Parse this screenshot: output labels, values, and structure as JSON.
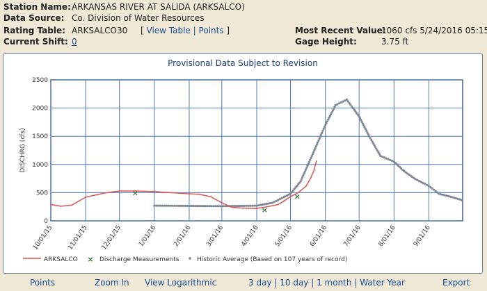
{
  "header": {
    "station_name_label": "Station Name:",
    "station_name": "ARKANSAS RIVER AT SALIDA (ARKSALCO)",
    "data_source_label": "Data Source:",
    "data_source": "Co. Division of Water Resources",
    "rating_table_label": "Rating Table:",
    "rating_table": "ARKSALCO30",
    "rating_links_open": "[",
    "view_table": "View Table",
    "points": "Points",
    "rating_links_close": "]",
    "link_sep": "|",
    "current_shift_label": "Current Shift:",
    "current_shift": "0",
    "most_recent_label": "Most Recent Value:",
    "most_recent": "1060 cfs 5/24/2016 05:15",
    "gage_height_label": "Gage Height:",
    "gage_height": "3.75 ft"
  },
  "colors": {
    "series_red": "#d9534f",
    "historic_gray": "#7c8594",
    "grid_blue": "#4f78b3",
    "measure_green": "#2e7d32"
  },
  "chart_data": {
    "type": "line",
    "title": "Provisional Data Subject to Revision",
    "ylabel": "DISCHRG (cfs)",
    "ylim": [
      0,
      2500
    ],
    "yticks": [
      "0",
      "500",
      "1000",
      "1500",
      "2000",
      "2500"
    ],
    "xticks": [
      "10/01/15",
      "11/01/15",
      "12/01/15",
      "1/01/16",
      "2/01/16",
      "3/01/16",
      "4/01/16",
      "5/01/16",
      "6/01/16",
      "7/01/16",
      "8/01/16",
      "9/01/16"
    ],
    "grid": true,
    "legend_position": "bottom",
    "series": [
      {
        "name": "ARKSALCO",
        "style": "line",
        "x": [
          "10/01/15",
          "10/10/15",
          "10/20/15",
          "10/25/15",
          "11/01/15",
          "11/10/15",
          "11/20/15",
          "12/01/15",
          "12/15/15",
          "1/01/16",
          "1/15/16",
          "2/01/16",
          "2/10/16",
          "2/20/16",
          "3/01/16",
          "3/10/16",
          "3/20/16",
          "4/01/16",
          "4/10/16",
          "4/20/16",
          "4/25/16",
          "5/01/16",
          "5/08/16",
          "5/15/16",
          "5/19/16",
          "5/22/16",
          "5/24/16"
        ],
        "values": [
          290,
          260,
          280,
          340,
          420,
          460,
          500,
          530,
          530,
          520,
          500,
          480,
          470,
          430,
          320,
          240,
          225,
          220,
          250,
          290,
          350,
          430,
          500,
          620,
          760,
          900,
          1060
        ]
      },
      {
        "name": "Discharge Measurements",
        "style": "marker",
        "x": [
          "12/15/15",
          "4/08/16",
          "5/07/16"
        ],
        "values": [
          500,
          200,
          440
        ]
      },
      {
        "name": "Historic Average (Based on 107 years of record)",
        "style": "dots",
        "x": [
          "1/01/16",
          "2/01/16",
          "3/01/16",
          "4/01/16",
          "4/15/16",
          "4/25/16",
          "5/01/16",
          "5/10/16",
          "5/20/16",
          "6/01/16",
          "6/10/16",
          "6/20/16",
          "7/01/16",
          "7/10/16",
          "7/20/16",
          "8/01/16",
          "8/10/16",
          "8/20/16",
          "9/01/16",
          "9/10/16",
          "9/20/16",
          "9/30/16"
        ],
        "values": [
          270,
          265,
          260,
          270,
          320,
          420,
          480,
          700,
          1150,
          1700,
          2050,
          2150,
          1850,
          1500,
          1150,
          1050,
          880,
          740,
          620,
          480,
          430,
          370
        ]
      }
    ]
  },
  "footer": {
    "points": "Points",
    "zoom_in": "Zoom In",
    "view_log": "View Logarithmic",
    "three_day": "3 day",
    "ten_day": "10 day",
    "one_month": "1 month",
    "water_year": "Water Year",
    "sep": "|",
    "export": "Export"
  }
}
